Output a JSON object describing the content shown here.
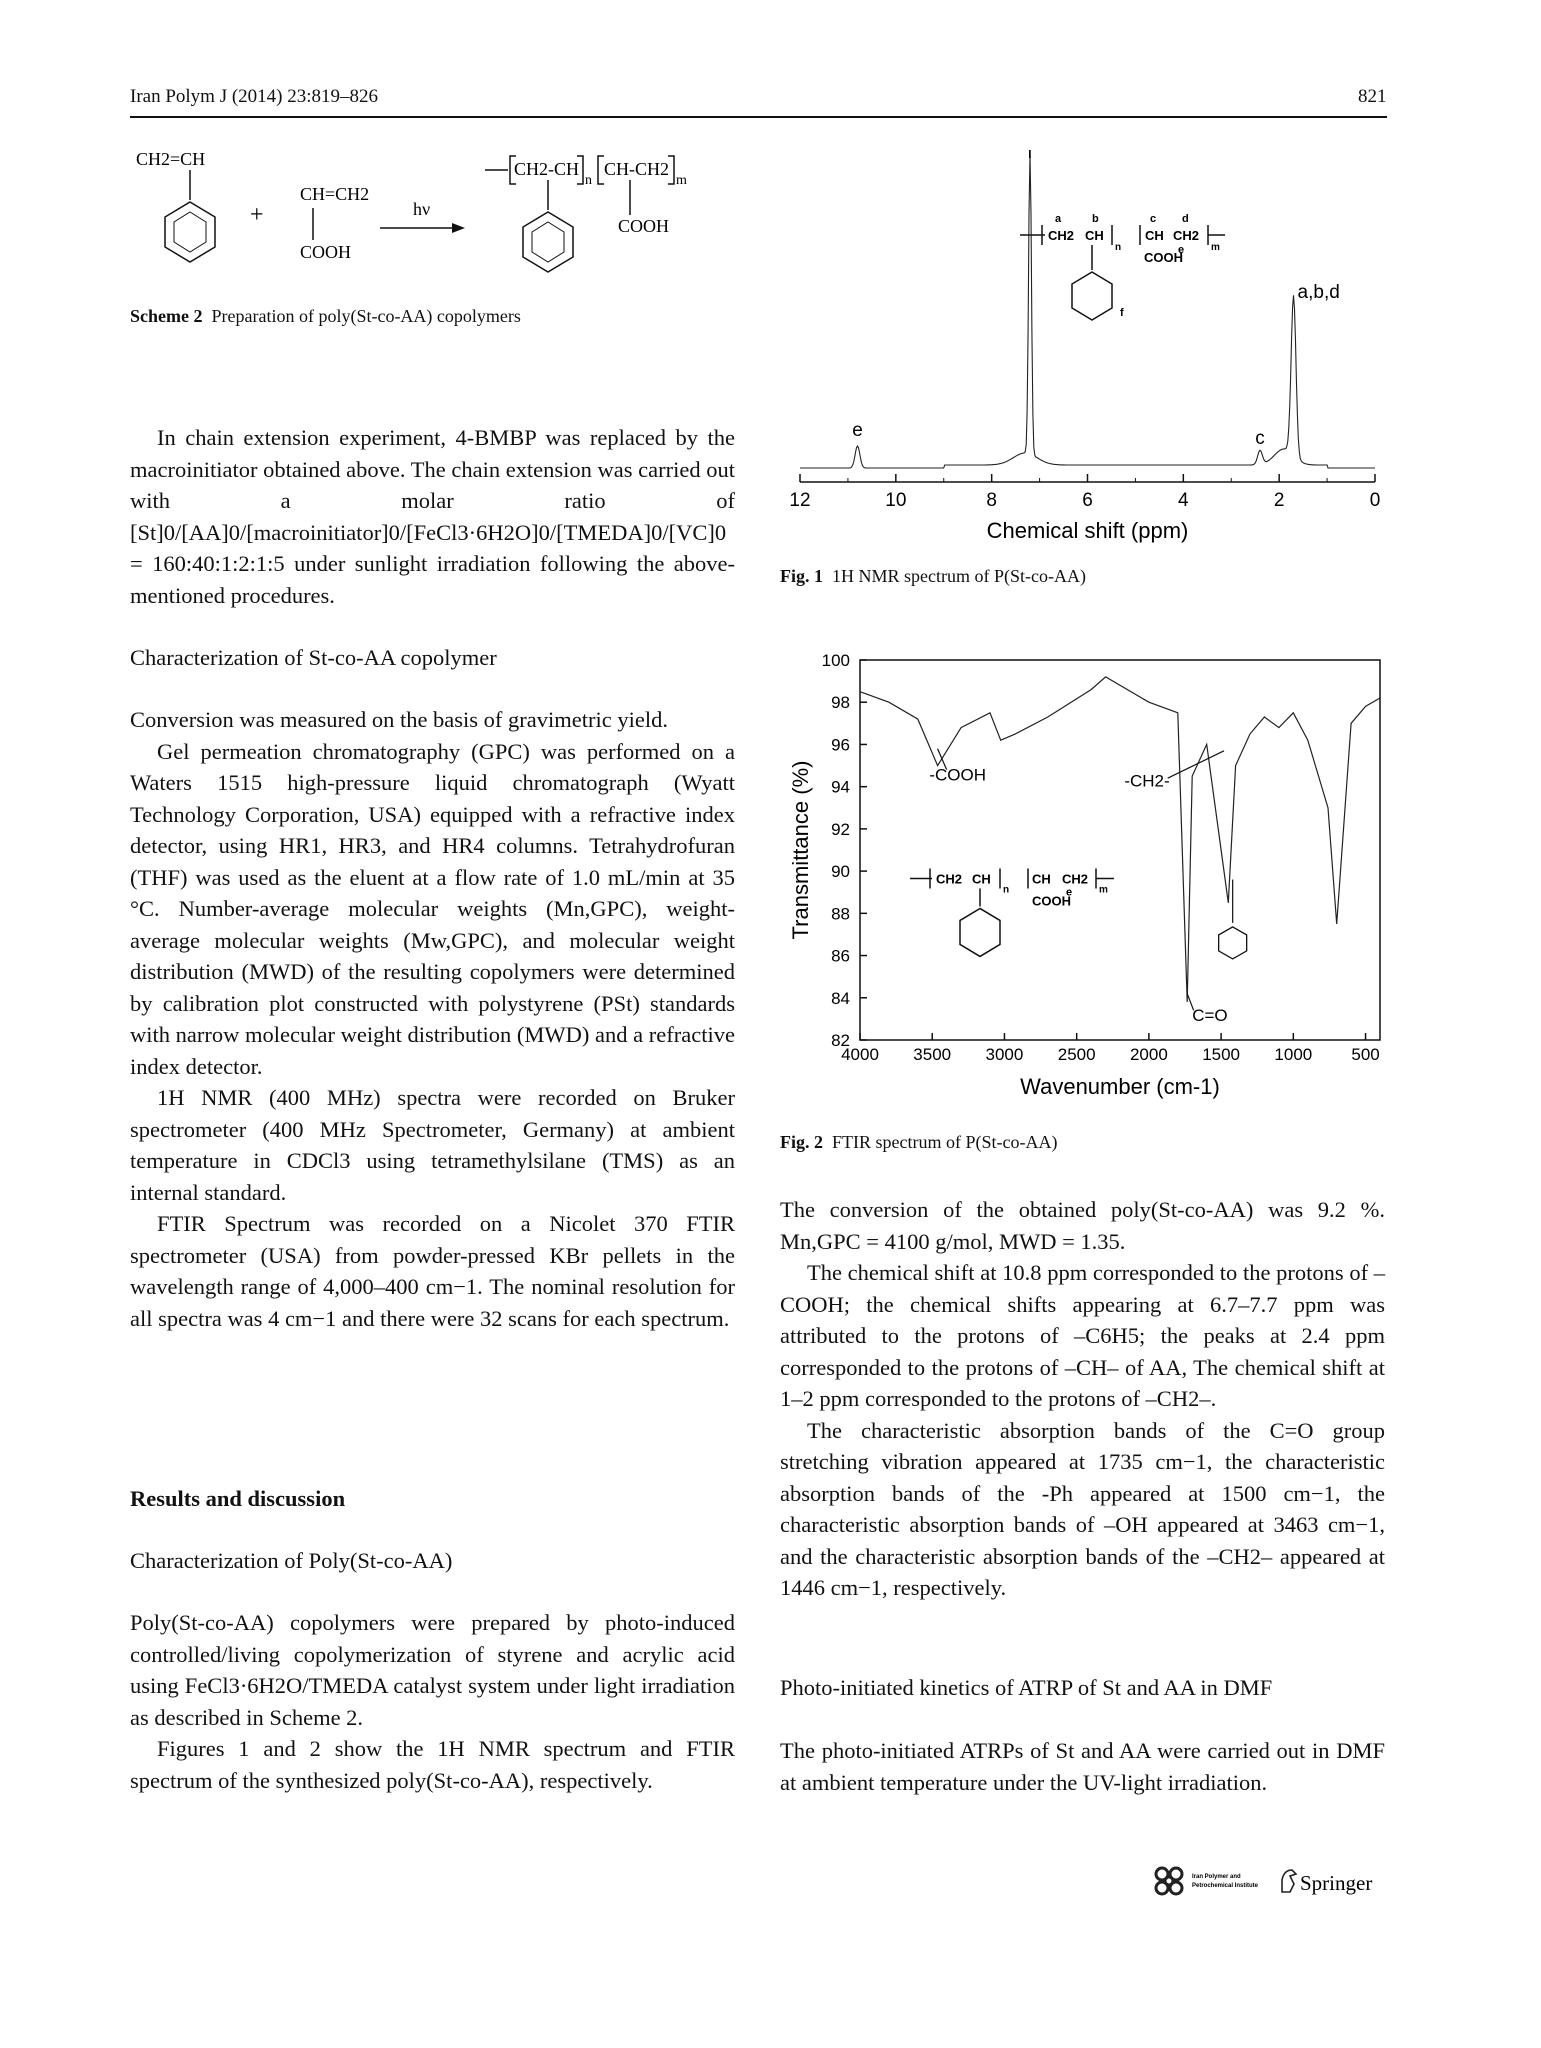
{
  "header": {
    "journal": "Iran Polym J (2014) 23:819–826",
    "page_number": "821"
  },
  "scheme2": {
    "caption_label": "Scheme 2",
    "caption_text": "Preparation of poly(St-co-AA) copolymers",
    "styrene_label": "CH2=CH",
    "plus": "+",
    "aa_label": "CH=CH2",
    "aa_cooh": "COOH",
    "arrow_label": "hν",
    "polymer_label": "CH2-CH",
    "polymer_label2": "CH-CH2",
    "n": "n",
    "m": "m",
    "polymer_cooh": "COOH"
  },
  "fig1": {
    "caption_label": "Fig. 1",
    "caption_text": "1H NMR spectrum of P(St-co-AA)",
    "chart_data": {
      "type": "line",
      "xlabel": "Chemical shift (ppm)",
      "ylabel": "",
      "xlim": [
        12,
        0
      ],
      "x_ticks": [
        "12",
        "10",
        "8",
        "6",
        "4",
        "2",
        "0"
      ],
      "peaks": [
        {
          "label": "e",
          "ppm": 10.8
        },
        {
          "label": "f",
          "ppm": 7.2
        },
        {
          "label": "c",
          "ppm": 2.4
        },
        {
          "label": "a,b,d",
          "ppm": 1.7
        }
      ],
      "structure_labels": [
        "a",
        "b",
        "c",
        "d",
        "e",
        "f",
        "CH2",
        "CH",
        "COOH",
        "n",
        "m"
      ]
    }
  },
  "fig2": {
    "caption_label": "Fig. 2",
    "caption_text": "FTIR spectrum of P(St-co-AA)",
    "chart_data": {
      "type": "line",
      "xlabel": "Wavenumber (cm-1)",
      "ylabel": "Transmittance (%)",
      "xlim": [
        4000,
        400
      ],
      "ylim": [
        82,
        100
      ],
      "x_ticks": [
        "4000",
        "3500",
        "3000",
        "2500",
        "2000",
        "1500",
        "1000",
        "500"
      ],
      "y_ticks": [
        "82",
        "84",
        "86",
        "88",
        "90",
        "92",
        "94",
        "96",
        "98",
        "100"
      ],
      "annotations": [
        "-COOH",
        "-CH2-",
        "C=O"
      ],
      "series": [
        {
          "x": [
            4000,
            3800,
            3600,
            3463,
            3300,
            3100,
            3026,
            2924,
            2700,
            2400,
            2300,
            2000,
            1800,
            1735,
            1700,
            1600,
            1500,
            1450,
            1400,
            1300,
            1200,
            1100,
            1000,
            900,
            760,
            700,
            600,
            500,
            400
          ],
          "y": [
            98.5,
            98.0,
            97.2,
            95.0,
            96.8,
            97.5,
            96.2,
            96.5,
            97.3,
            98.6,
            99.2,
            98.0,
            97.5,
            83.8,
            94.5,
            96.0,
            91.0,
            88.5,
            95.0,
            96.5,
            97.3,
            96.8,
            97.5,
            96.2,
            93.0,
            87.5,
            97.0,
            97.8,
            98.2
          ]
        }
      ]
    }
  },
  "left_col": {
    "p1": "In chain extension experiment, 4-BMBP was replaced by the macroinitiator obtained above. The chain extension was carried out with a molar ratio of [St]0/[AA]0/[macroinitiator]0/[FeCl3·6H2O]0/[TMEDA]0/[VC]0 = 160:40:1:2:1:5 under sunlight irradiation following the above-mentioned procedures.",
    "h_char": "Characterization of St-co-AA copolymer",
    "p2": "Conversion was measured on the basis of gravimetric yield.",
    "p3": "Gel permeation chromatography (GPC) was performed on a Waters 1515 high-pressure liquid chromatograph (Wyatt Technology Corporation, USA) equipped with a refractive index detector, using HR1, HR3, and HR4 columns. Tetrahydrofuran (THF) was used as the eluent at a flow rate of 1.0 mL/min at 35 °C. Number-average molecular weights (Mn,GPC), weight-average molecular weights (Mw,GPC), and molecular weight distribution (MWD) of the resulting copolymers were determined by calibration plot constructed with polystyrene (PSt) standards with narrow molecular weight distribution (MWD) and a refractive index detector.",
    "p4": "1H NMR (400 MHz) spectra were recorded on Bruker spectrometer (400 MHz Spectrometer, Germany) at ambient temperature in CDCl3 using tetramethylsilane (TMS) as an internal standard.",
    "p5": "FTIR Spectrum was recorded on a Nicolet 370 FTIR spectrometer (USA) from powder-pressed KBr pellets in the wavelength range of 4,000–400 cm−1. The nominal resolution for all spectra was 4 cm−1 and there were 32 scans for each spectrum.",
    "h_results": "Results and discussion",
    "h_poly": "Characterization of Poly(St-co-AA)",
    "p6": "Poly(St-co-AA) copolymers were prepared by photo-induced controlled/living copolymerization of styrene and acrylic acid using FeCl3·6H2O/TMEDA catalyst system under light irradiation as described in Scheme 2.",
    "p7": "Figures 1 and 2 show the 1H NMR spectrum and FTIR spectrum of the synthesized poly(St-co-AA), respectively."
  },
  "right_col": {
    "p1": "The conversion of the obtained poly(St-co-AA) was 9.2 %. Mn,GPC = 4100 g/mol, MWD = 1.35.",
    "p2": "The chemical shift at 10.8 ppm corresponded to the protons of –COOH; the chemical shifts appearing at 6.7–7.7 ppm was attributed to the protons of –C6H5; the peaks at 2.4 ppm corresponded to the protons of –CH– of AA, The chemical shift at 1–2 ppm corresponded to the protons of –CH2–.",
    "p3": "The characteristic absorption bands of the C=O group stretching vibration appeared at 1735 cm−1, the characteristic absorption bands of the -Ph appeared at 1500 cm−1, the characteristic absorption bands of –OH appeared at 3463 cm−1, and the characteristic absorption bands of the –CH2– appeared at 1446 cm−1, respectively.",
    "h_photo": "Photo-initiated kinetics of ATRP of St and AA in DMF",
    "p4": "The photo-initiated ATRPs of St and AA were carried out in DMF at ambient temperature under the UV-light irradiation."
  },
  "footer": {
    "institute_line1": "Iran Polymer and",
    "institute_line2": "Petrochemical Institute",
    "springer": "Springer"
  }
}
